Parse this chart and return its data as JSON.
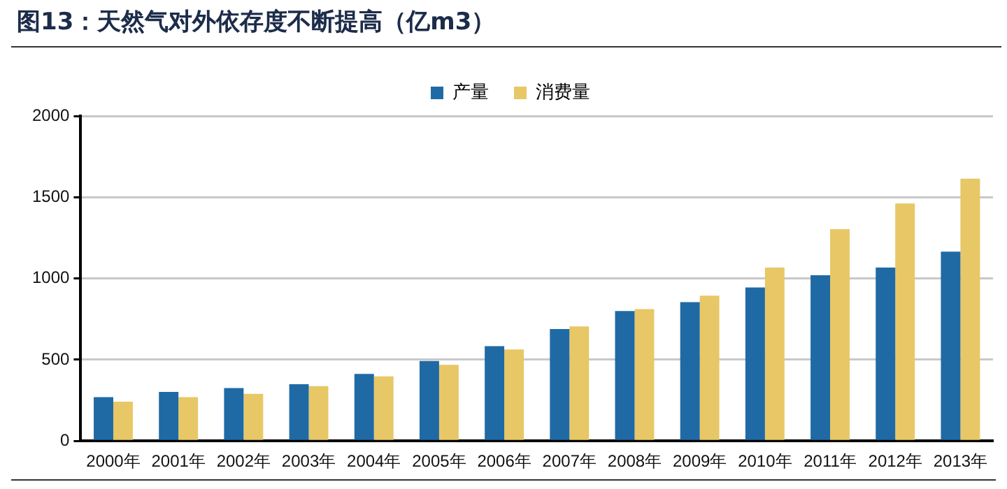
{
  "chart_data": {
    "type": "bar",
    "title": "图13：天然气对外依存度不断提高（亿m3）",
    "categories": [
      "2000年",
      "2001年",
      "2002年",
      "2003年",
      "2004年",
      "2005年",
      "2006年",
      "2007年",
      "2008年",
      "2009年",
      "2010年",
      "2011年",
      "2012年",
      "2013年"
    ],
    "series": [
      {
        "name": "产量",
        "color": "#1f6aa5",
        "values": [
          270,
          302,
          325,
          349,
          413,
          492,
          583,
          689,
          799,
          854,
          945,
          1020,
          1067,
          1165
        ]
      },
      {
        "name": "消费量",
        "color": "#e8c766",
        "values": [
          242,
          270,
          290,
          337,
          397,
          468,
          563,
          705,
          811,
          894,
          1067,
          1303,
          1461,
          1614
        ]
      }
    ],
    "ylim": [
      0,
      2000
    ],
    "yticks": [
      0,
      500,
      1000,
      1500,
      2000
    ],
    "grid": "y",
    "legend": "top"
  }
}
